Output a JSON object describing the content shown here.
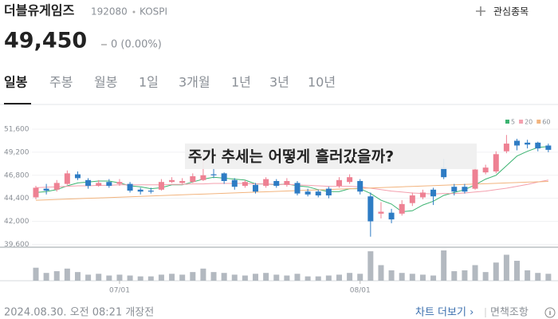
{
  "header": {
    "name": "더블유게임즈",
    "code": "192080",
    "market": "KOSPI",
    "watch": "관심종목",
    "price": "49,450",
    "change": "0 (0.00%)"
  },
  "tabs": [
    "일봉",
    "주봉",
    "월봉",
    "1일",
    "3개월",
    "1년",
    "3년",
    "10년"
  ],
  "chart_data": {
    "type": "candlestick",
    "categories": [
      null,
      null,
      null,
      null,
      null,
      null,
      null,
      null,
      "07/01",
      null,
      null,
      null,
      null,
      null,
      null,
      null,
      null,
      null,
      null,
      null,
      null,
      null,
      null,
      null,
      null,
      null,
      null,
      null,
      null,
      null,
      null,
      "08/01",
      null,
      null,
      null,
      null,
      null,
      null,
      null,
      null,
      null,
      null,
      null,
      null,
      null,
      null,
      null,
      null,
      null,
      null
    ],
    "open": [
      44500,
      45400,
      45300,
      45900,
      46900,
      46300,
      45700,
      46100,
      45900,
      45900,
      45300,
      45200,
      45300,
      46100,
      46000,
      46100,
      46300,
      46900,
      47000,
      46300,
      45700,
      45800,
      45700,
      46200,
      45800,
      46000,
      45100,
      45100,
      45400,
      45700,
      46100,
      46200,
      44600,
      42800,
      42900,
      42800,
      43900,
      44500,
      45300,
      47600,
      45600,
      45600,
      45400,
      47100,
      47200,
      49300,
      50400,
      50200,
      50200,
      49900
    ],
    "high": [
      45700,
      45900,
      46300,
      47300,
      47200,
      46500,
      46300,
      46400,
      46400,
      46100,
      45500,
      45500,
      46400,
      46600,
      46500,
      47000,
      48900,
      47500,
      47100,
      46500,
      46300,
      46000,
      46600,
      46400,
      46500,
      46200,
      45400,
      45300,
      45600,
      46600,
      46900,
      46400,
      45000,
      44000,
      43300,
      44200,
      45000,
      45300,
      45500,
      48500,
      45900,
      45900,
      47600,
      47900,
      49300,
      51000,
      50600,
      50500,
      50300,
      50100
    ],
    "low": [
      44300,
      44800,
      45100,
      45800,
      46300,
      45400,
      45600,
      45500,
      45700,
      45000,
      44800,
      44900,
      45200,
      46000,
      45900,
      46000,
      46200,
      46500,
      45900,
      45300,
      45500,
      44900,
      45500,
      45500,
      45600,
      44700,
      44600,
      44500,
      44400,
      45500,
      45900,
      44800,
      40400,
      42300,
      41800,
      42600,
      43600,
      44300,
      43700,
      46400,
      44700,
      44900,
      45300,
      46900,
      47000,
      49100,
      49400,
      49600,
      49300,
      49200
    ],
    "close": [
      45500,
      45200,
      46000,
      47000,
      46500,
      45700,
      46000,
      45700,
      46100,
      45200,
      45100,
      45100,
      46100,
      46300,
      46200,
      46700,
      46800,
      46800,
      46200,
      45600,
      46100,
      45100,
      46400,
      45700,
      46200,
      44900,
      44800,
      44700,
      44700,
      46300,
      46600,
      45100,
      42000,
      43000,
      42200,
      43800,
      44700,
      45000,
      44600,
      46600,
      45100,
      45100,
      47400,
      47600,
      49000,
      50100,
      49900,
      50000,
      49600,
      49450
    ],
    "volume": [
      150000,
      90000,
      110000,
      140000,
      100000,
      70000,
      80000,
      60000,
      70000,
      60000,
      50000,
      50000,
      70000,
      80000,
      70000,
      100000,
      140000,
      100000,
      90000,
      70000,
      60000,
      80000,
      90000,
      70000,
      60000,
      80000,
      50000,
      50000,
      60000,
      70000,
      90000,
      80000,
      340000,
      180000,
      120000,
      90000,
      80000,
      70000,
      60000,
      350000,
      110000,
      120000,
      180000,
      100000,
      210000,
      300000,
      230000,
      120000,
      90000,
      80000
    ],
    "up_color": "#ee8193",
    "down_color": "#2e7cc4",
    "volume_color": "#b3b9c0",
    "ylim": [
      39300,
      52600
    ],
    "yticks": [
      {
        "value": 39600,
        "label": "39,600"
      },
      {
        "value": 42000,
        "label": "42,000"
      },
      {
        "value": 44400,
        "label": "44,400"
      },
      {
        "value": 46800,
        "label": "46,800"
      },
      {
        "value": 49200,
        "label": "49,200"
      },
      {
        "value": 51600,
        "label": "51,600"
      }
    ],
    "grid": true,
    "series": [
      {
        "name": "5",
        "color": "#3cb371",
        "values": [
          45000,
          45100,
          45300,
          45700,
          46000,
          46100,
          46200,
          46200,
          46000,
          45700,
          45600,
          45400,
          45500,
          45800,
          45800,
          46100,
          46400,
          46600,
          46500,
          46400,
          46300,
          45900,
          45900,
          45800,
          45900,
          45700,
          45600,
          45300,
          45100,
          45100,
          45400,
          45400,
          44900,
          44200,
          43800,
          43000,
          43100,
          43700,
          44100,
          44700,
          45000,
          45300,
          45800,
          46400,
          46800,
          47800,
          48800,
          49300,
          49700,
          49800
        ]
      },
      {
        "name": "20",
        "color": "#f4a0ae",
        "values": [
          45500,
          45550,
          45600,
          45650,
          45700,
          45700,
          45750,
          45750,
          45800,
          45800,
          45800,
          45800,
          45800,
          45850,
          45850,
          45900,
          45900,
          45950,
          45950,
          45950,
          45950,
          45900,
          45900,
          45850,
          45850,
          45800,
          45750,
          45700,
          45650,
          45650,
          45650,
          45600,
          45450,
          45300,
          45150,
          45050,
          44950,
          44900,
          44850,
          44900,
          44900,
          44950,
          45050,
          45150,
          45300,
          45450,
          45650,
          45850,
          46100,
          46300
        ]
      },
      {
        "name": "60",
        "color": "#f2b47e",
        "values": [
          44200,
          44240,
          44280,
          44320,
          44360,
          44400,
          44440,
          44480,
          44520,
          44560,
          44600,
          44640,
          44680,
          44720,
          44760,
          44800,
          44840,
          44880,
          44920,
          44960,
          45000,
          45040,
          45080,
          45120,
          45160,
          45200,
          45240,
          45280,
          45320,
          45360,
          45400,
          45440,
          45480,
          45520,
          45560,
          45600,
          45640,
          45680,
          45720,
          45760,
          45800,
          45840,
          45880,
          45920,
          45960,
          46000,
          46040,
          46080,
          46120,
          46160
        ]
      }
    ]
  },
  "overlay": "주가 추세는 어떻게 흘러갔을까?",
  "footer": {
    "time": "2024.08.30. 오전 08:21 개장전",
    "more": "차트 더보기 ›",
    "disclaimer": "면책조항"
  }
}
